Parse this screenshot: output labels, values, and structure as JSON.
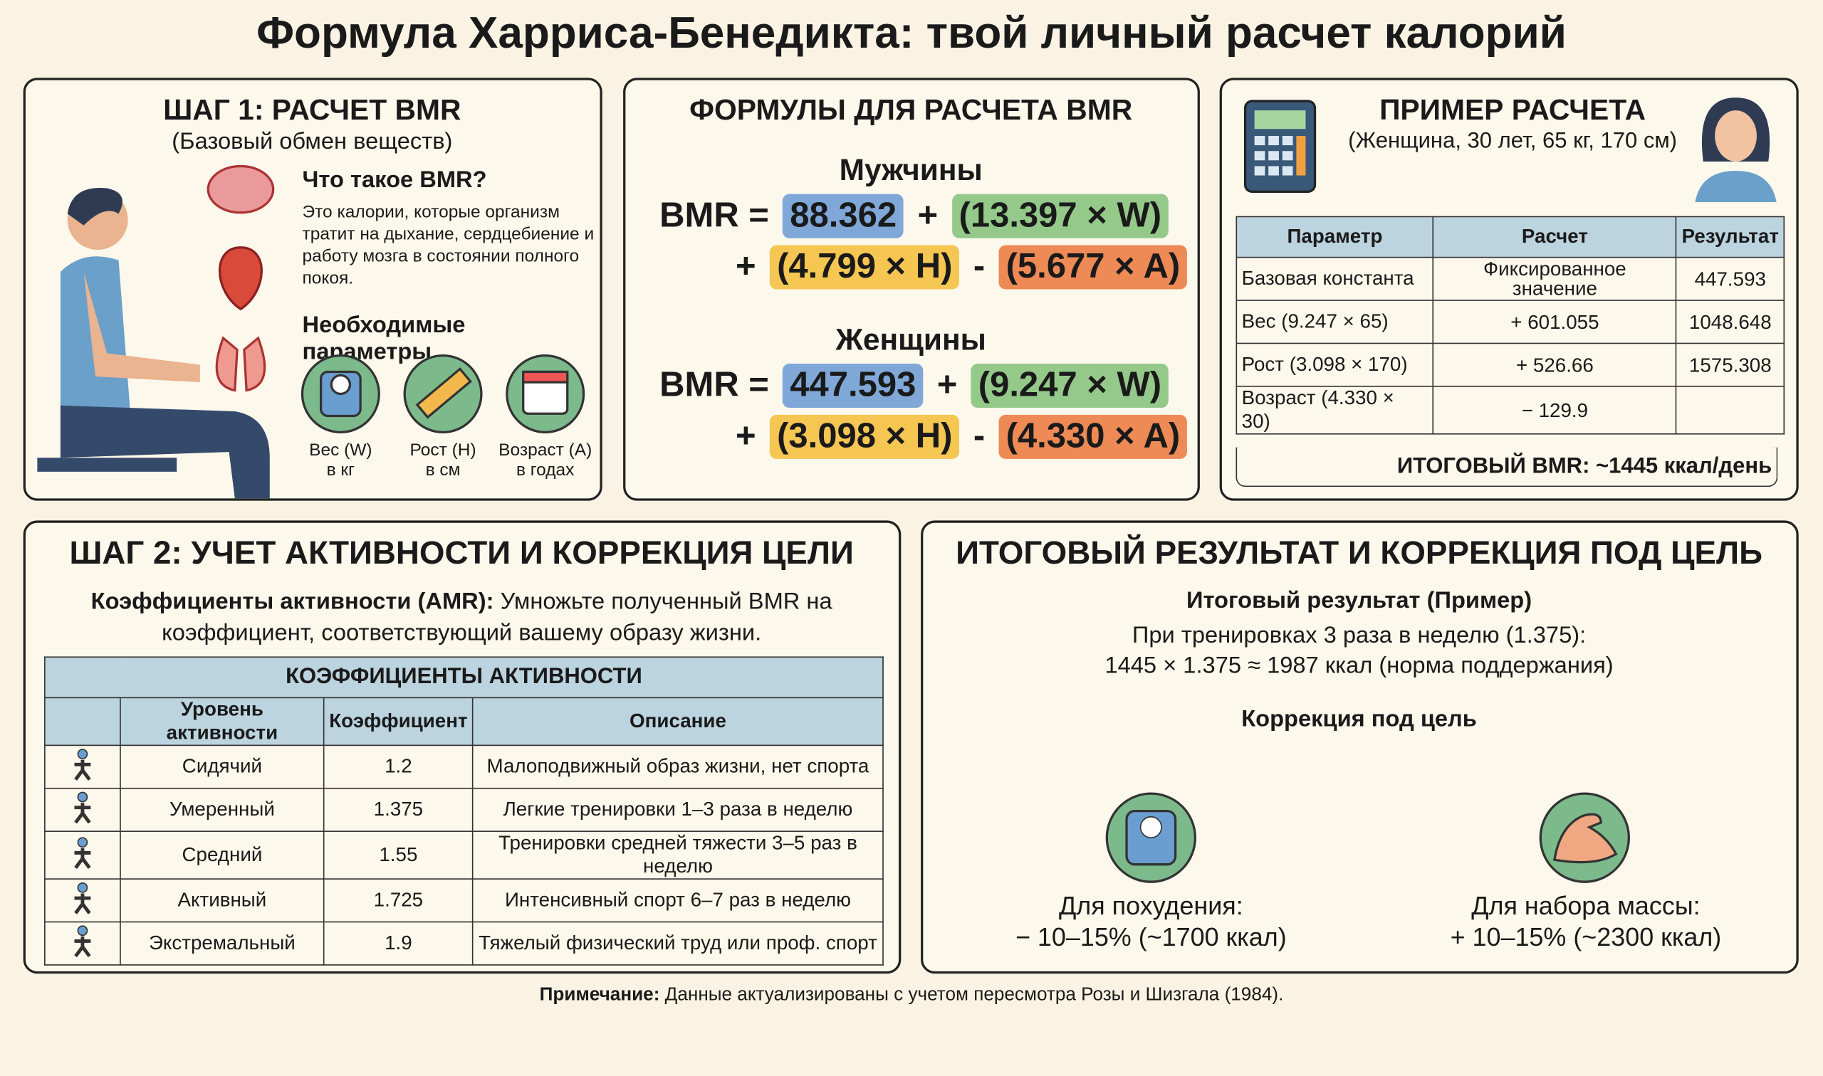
{
  "title": "Формула Харриса-Бенедикта: твой личный расчет калорий",
  "step1": {
    "title": "ШАГ 1: РАСЧЕТ BMR",
    "subtitle": "(Базовый обмен веществ)",
    "what_title": "Что такое BMR?",
    "what_text": "Это калории, которые организм тратит на дыхание, сердцебиение и работу мозга в состоянии полного покоя.",
    "params_title": "Необходимые параметры",
    "params": [
      {
        "label": "Вес (W)",
        "unit": "в кг"
      },
      {
        "label": "Рост (H)",
        "unit": "в см"
      },
      {
        "label": "Возраст (A)",
        "unit": "в годах"
      }
    ]
  },
  "formulas": {
    "title": "ФОРМУЛЫ ДЛЯ РАСЧЕТА BMR",
    "groups": [
      {
        "name": "Мужчины",
        "line1": [
          "BMR =",
          "88.362",
          "+",
          "(13.397 × W)"
        ],
        "line2": [
          "+",
          "(4.799 × H)",
          "-",
          "(5.677 × A)"
        ]
      },
      {
        "name": "Женщины",
        "line1": [
          "BMR =",
          "447.593",
          "+",
          "(9.247 × W)"
        ],
        "line2": [
          "+",
          "(3.098 × H)",
          "-",
          "(4.330 × A)"
        ]
      }
    ]
  },
  "example": {
    "title": "ПРИМЕР РАСЧЕТА",
    "subtitle": "(Женщина, 30 лет, 65 кг, 170 см)",
    "table": {
      "header": [
        "Параметр",
        "Расчет",
        "Результат"
      ],
      "rows": [
        [
          "Базовая константа",
          "Фиксированное значение",
          "447.593"
        ],
        [
          "Вес (9.247 × 65)",
          "+ 601.055",
          "1048.648"
        ],
        [
          "Рост (3.098 × 170)",
          "+ 526.66",
          "1575.308"
        ],
        [
          "Возраст (4.330 × 30)",
          "− 129.9",
          null
        ]
      ]
    },
    "total": "ИТОГОВЫЙ BMR: ~1445 ккал/день"
  },
  "step2": {
    "title": "ШАГ 2: УЧЕТ АКТИВНОСТИ И КОРРЕКЦИЯ ЦЕЛИ",
    "intro_bold": "Коэффициенты активности (AMR):",
    "intro_text": "Умножьте полученный BMR на коэффициент, соответствующий вашему образу жизни.",
    "table": {
      "caption": "КОЭФФИЦИЕНТЫ АКТИВНОСТИ",
      "header": [
        "Уровень активности",
        "Коэффициент",
        "Описание"
      ],
      "rows": [
        [
          "Сидячий",
          "1.2",
          "Малоподвижный образ жизни, нет спорта"
        ],
        [
          "Умеренный",
          "1.375",
          "Легкие тренировки 1–3 раза в неделю"
        ],
        [
          "Средний",
          "1.55",
          "Тренировки средней тяжести 3–5 раз в неделю"
        ],
        [
          "Активный",
          "1.725",
          "Интенсивный спорт 6–7 раз в неделю"
        ],
        [
          "Экстремальный",
          "1.9",
          "Тяжелый физический труд или проф. спорт"
        ]
      ]
    }
  },
  "result": {
    "title": "ИТОГОВЫЙ РЕЗУЛЬТАТ И КОРРЕКЦИЯ ПОД ЦЕЛЬ",
    "example_title": "Итоговый результат (Пример)",
    "example_lines": [
      "При тренировках 3 раза в неделю (1.375):",
      "1445 × 1.375 ≈ 1987 ккал (норма поддержания)"
    ],
    "goal_title": "Коррекция под цель",
    "goals": [
      {
        "label": "Для похудения:",
        "value": "− 10–15% (~1700 ккал)"
      },
      {
        "label": "Для набора массы:",
        "value": "+ 10–15% (~2300 ккал)"
      }
    ]
  },
  "note": {
    "label": "Примечание:",
    "text": "Данные актуализированы с учетом пересмотра Розы и Шизгала (1984)."
  }
}
